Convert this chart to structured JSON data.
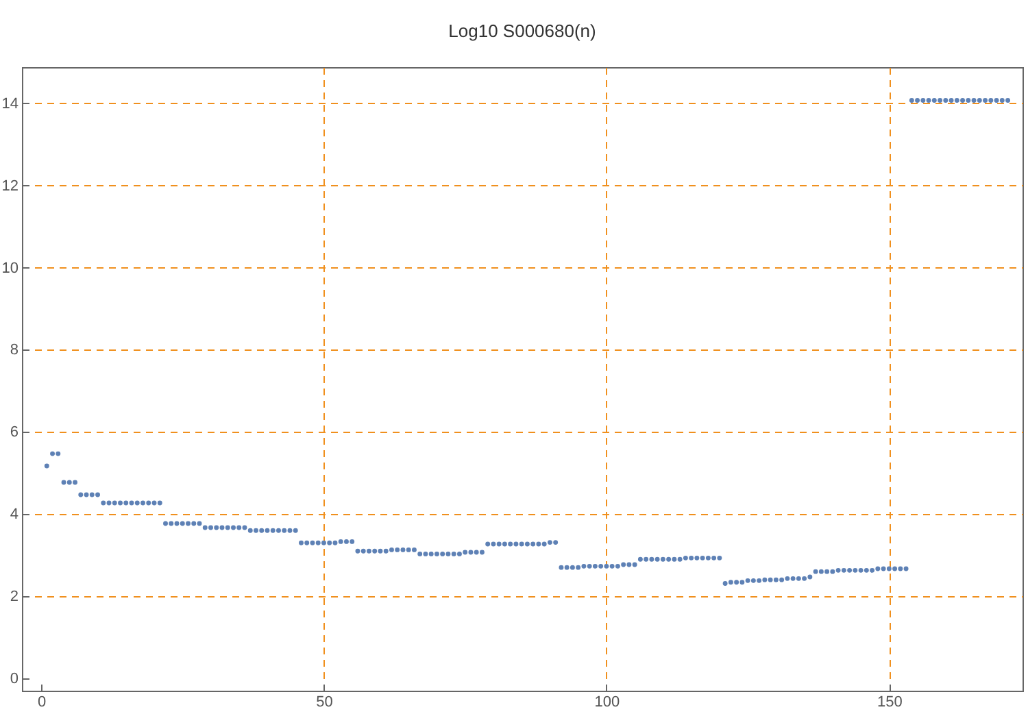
{
  "chart_data": {
    "type": "scatter",
    "title": "Log10 S000680(n)",
    "x": [
      1,
      2,
      3,
      4,
      5,
      6,
      7,
      8,
      9,
      10,
      11,
      12,
      13,
      14,
      15,
      16,
      17,
      18,
      19,
      20,
      21,
      22,
      23,
      24,
      25,
      26,
      27,
      28,
      29,
      30,
      31,
      32,
      33,
      34,
      35,
      36,
      37,
      38,
      39,
      40,
      41,
      42,
      43,
      44,
      45,
      46,
      47,
      48,
      49,
      50,
      51,
      52,
      53,
      54,
      55,
      56,
      57,
      58,
      59,
      60,
      61,
      62,
      63,
      64,
      65,
      66,
      67,
      68,
      69,
      70,
      71,
      72,
      73,
      74,
      75,
      76,
      77,
      78,
      79,
      80,
      81,
      82,
      83,
      84,
      85,
      86,
      87,
      88,
      89,
      90,
      91,
      92,
      93,
      94,
      95,
      96,
      97,
      98,
      99,
      100,
      101,
      102,
      103,
      104,
      105,
      106,
      107,
      108,
      109,
      110,
      111,
      112,
      113,
      114,
      115,
      116,
      117,
      118,
      119,
      120,
      121,
      122,
      123,
      124,
      125,
      126,
      127,
      128,
      129,
      130,
      131,
      132,
      133,
      134,
      135,
      136,
      137,
      138,
      139,
      140,
      141,
      142,
      143,
      144,
      145,
      146,
      147,
      148,
      149,
      150,
      151,
      152,
      153,
      154,
      155,
      156,
      157,
      158,
      159,
      160,
      161,
      162,
      163,
      164,
      165,
      166,
      167,
      168,
      169,
      170,
      171
    ],
    "series": [
      {
        "color": "#5e81b5",
        "values": [
          5.17,
          5.47,
          5.47,
          4.77,
          4.77,
          4.77,
          4.47,
          4.47,
          4.47,
          4.47,
          4.27,
          4.27,
          4.27,
          4.27,
          4.27,
          4.27,
          4.27,
          4.27,
          4.27,
          4.27,
          4.27,
          3.77,
          3.77,
          3.77,
          3.77,
          3.77,
          3.77,
          3.77,
          3.67,
          3.67,
          3.67,
          3.67,
          3.67,
          3.67,
          3.67,
          3.67,
          3.6,
          3.6,
          3.6,
          3.6,
          3.6,
          3.6,
          3.6,
          3.6,
          3.6,
          3.3,
          3.3,
          3.3,
          3.3,
          3.3,
          3.3,
          3.3,
          3.33,
          3.33,
          3.33,
          3.1,
          3.1,
          3.1,
          3.1,
          3.1,
          3.1,
          3.13,
          3.13,
          3.13,
          3.13,
          3.13,
          3.03,
          3.03,
          3.03,
          3.03,
          3.03,
          3.03,
          3.03,
          3.03,
          3.07,
          3.07,
          3.07,
          3.07,
          3.27,
          3.27,
          3.27,
          3.27,
          3.27,
          3.27,
          3.27,
          3.27,
          3.27,
          3.27,
          3.27,
          3.31,
          3.31,
          2.7,
          2.7,
          2.7,
          2.7,
          2.73,
          2.73,
          2.73,
          2.73,
          2.73,
          2.73,
          2.73,
          2.77,
          2.77,
          2.77,
          2.9,
          2.9,
          2.9,
          2.9,
          2.9,
          2.9,
          2.9,
          2.9,
          2.93,
          2.93,
          2.93,
          2.93,
          2.93,
          2.93,
          2.93,
          2.31,
          2.34,
          2.34,
          2.34,
          2.38,
          2.38,
          2.38,
          2.4,
          2.4,
          2.4,
          2.4,
          2.43,
          2.43,
          2.43,
          2.43,
          2.47,
          2.6,
          2.6,
          2.6,
          2.6,
          2.63,
          2.63,
          2.63,
          2.63,
          2.63,
          2.63,
          2.63,
          2.67,
          2.67,
          2.67,
          2.67,
          2.67,
          2.67,
          14.07,
          14.07,
          14.07,
          14.07,
          14.07,
          14.07,
          14.07,
          14.07,
          14.07,
          14.07,
          14.07,
          14.07,
          14.07,
          14.07,
          14.07,
          14.07,
          14.07,
          14.07
        ]
      }
    ],
    "xlim": [
      -3.4,
      173.6
    ],
    "ylim": [
      -0.3,
      14.88
    ],
    "xticks": [
      0,
      50,
      100,
      150
    ],
    "yticks": [
      0,
      2,
      4,
      6,
      8,
      10,
      12,
      14
    ],
    "grid": true,
    "marker": "circle"
  }
}
